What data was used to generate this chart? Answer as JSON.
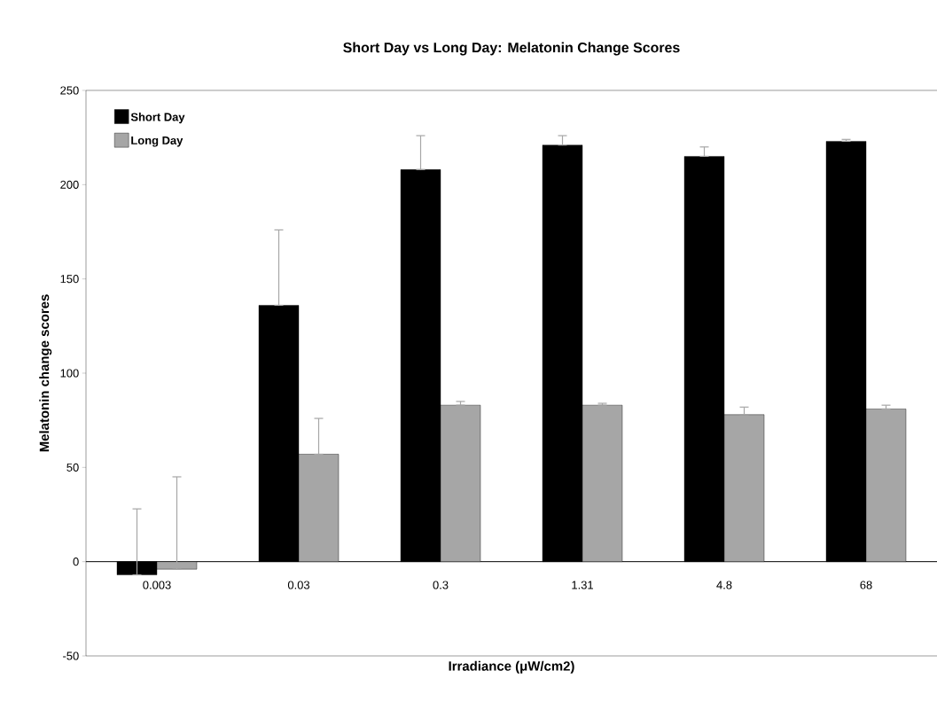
{
  "chart_data": {
    "type": "bar",
    "title": "Short Day vs Long Day:  Melatonin Change Scores",
    "xlabel": "Irradiance (μW/cm2)",
    "ylabel": "Melatonin change scores",
    "categories": [
      "0.003",
      "0.03",
      "0.3",
      "1.31",
      "4.8",
      "68"
    ],
    "series": [
      {
        "name": "Short Day",
        "color": "#000000",
        "values": [
          -7,
          136,
          208,
          221,
          215,
          223
        ],
        "errors": [
          [
            -7,
            28
          ],
          [
            136,
            176
          ],
          [
            208,
            226
          ],
          [
            221,
            226
          ],
          [
            215,
            220
          ],
          [
            223,
            224
          ]
        ]
      },
      {
        "name": "Long Day",
        "color": "#a6a6a6",
        "values": [
          -4,
          57,
          83,
          83,
          78,
          81
        ],
        "errors": [
          [
            -4,
            45
          ],
          [
            57,
            76
          ],
          [
            83,
            85
          ],
          [
            83,
            84
          ],
          [
            78,
            82
          ],
          [
            81,
            83
          ]
        ]
      }
    ],
    "ylim": [
      -50,
      250
    ],
    "yticks": [
      -50,
      0,
      50,
      100,
      150,
      200,
      250
    ],
    "legend": "top left",
    "grid": false
  }
}
